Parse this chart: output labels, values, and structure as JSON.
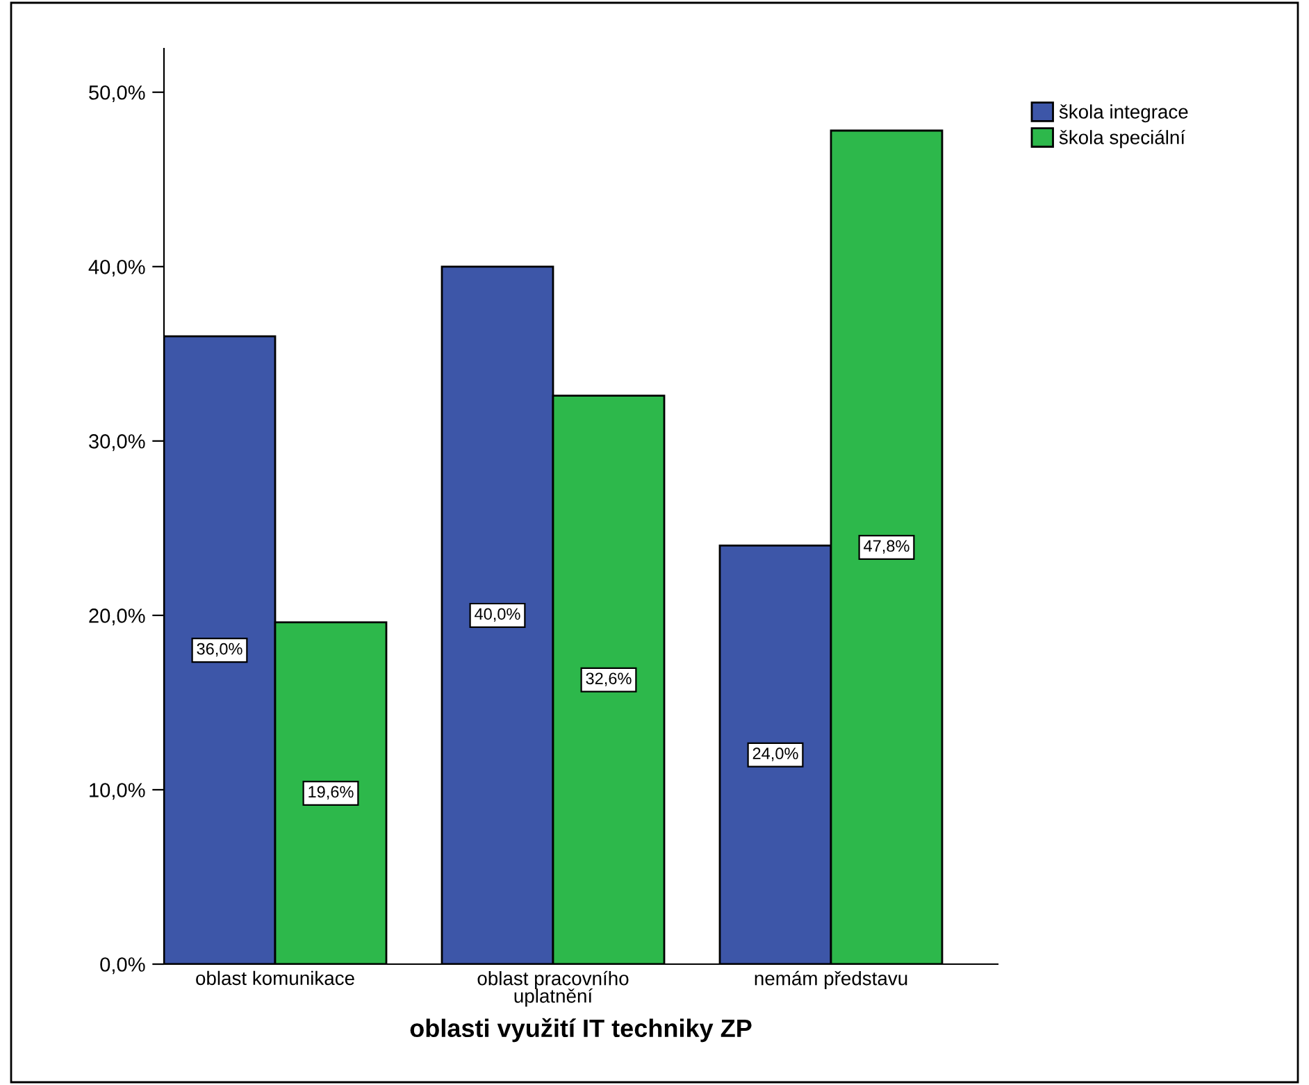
{
  "chart_data": {
    "type": "bar",
    "xlabel": "oblasti využití IT techniky ZP",
    "categories": [
      "oblast komunikace",
      "oblast pracovního\nuplatnění",
      "nemám představu"
    ],
    "series": [
      {
        "name": "škola integrace",
        "color": "#3d56a8",
        "values": [
          36.0,
          40.0,
          24.0
        ],
        "value_labels": [
          "36,0%",
          "40,0%",
          "24,0%"
        ]
      },
      {
        "name": "škola speciální",
        "color": "#2db84b",
        "values": [
          19.6,
          32.6,
          47.8
        ],
        "value_labels": [
          "19,6%",
          "32,6%",
          "47,8%"
        ]
      }
    ],
    "ylim": [
      0,
      52.5
    ],
    "yticks": [
      {
        "value": 0,
        "label": "0,0%"
      },
      {
        "value": 10,
        "label": "10,0%"
      },
      {
        "value": 20,
        "label": "20,0%"
      },
      {
        "value": 30,
        "label": "30,0%"
      },
      {
        "value": 40,
        "label": "40,0%"
      },
      {
        "value": 50,
        "label": "50,0%"
      }
    ],
    "grid": false,
    "legend": "top right"
  }
}
